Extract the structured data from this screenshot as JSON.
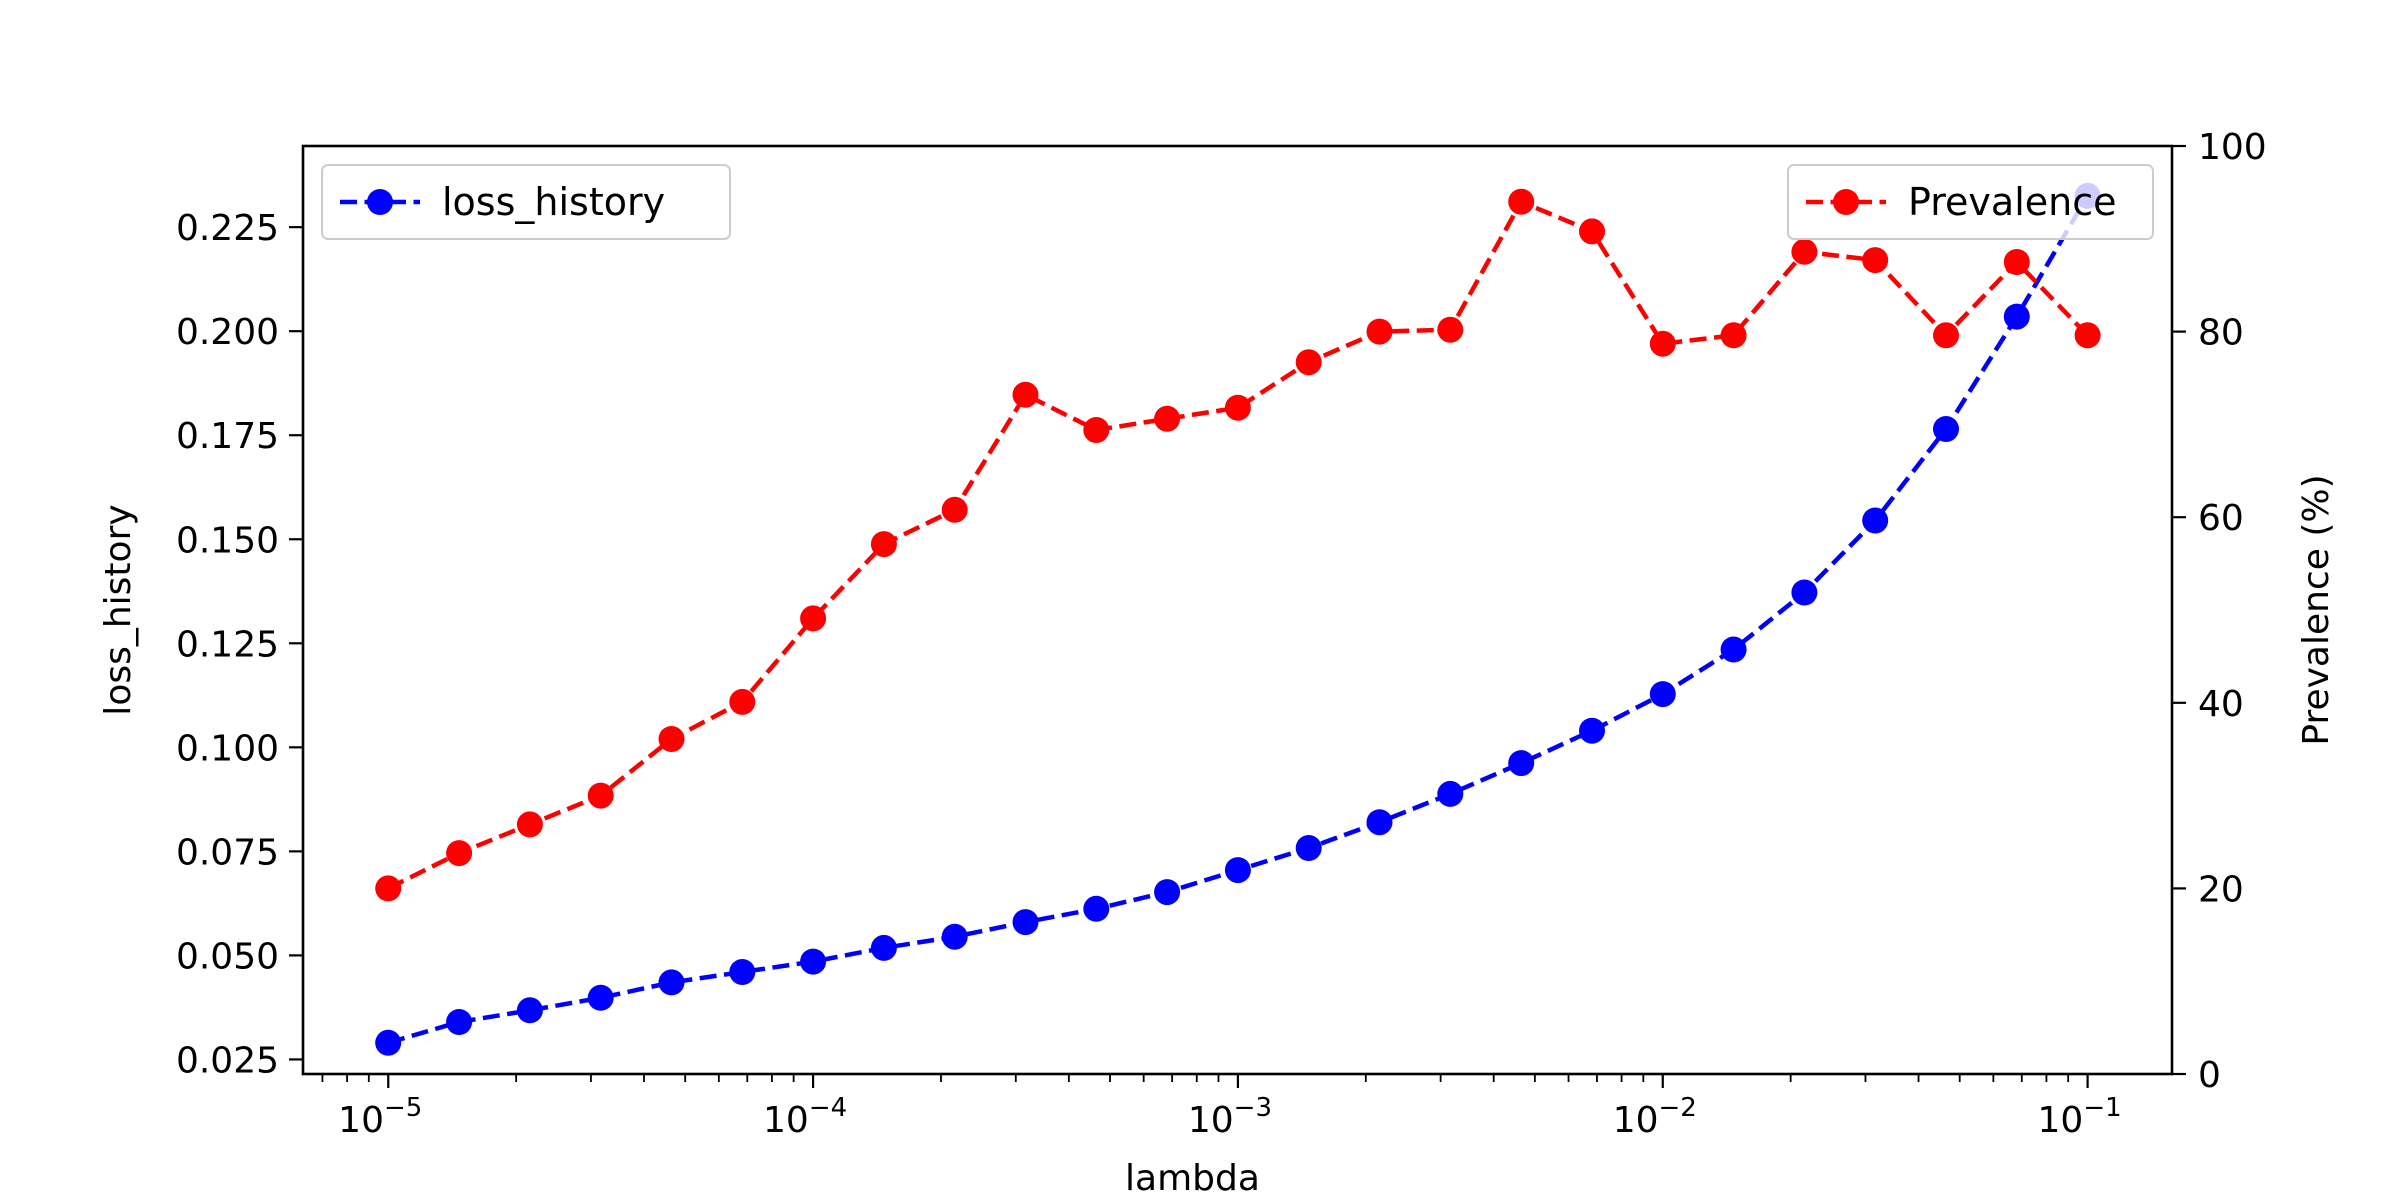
{
  "chart_data": {
    "type": "line",
    "xlabel": "lambda",
    "x_scale": "log",
    "xlim": [
      6.3e-06,
      0.158
    ],
    "x": [
      1e-05,
      1.4678e-05,
      2.1544e-05,
      3.1623e-05,
      4.6416e-05,
      6.8129e-05,
      0.0001,
      0.00014678,
      0.00021544,
      0.00031623,
      0.00046416,
      0.00068129,
      0.001,
      0.0014678,
      0.0021544,
      0.0031623,
      0.0046416,
      0.0068129,
      0.01,
      0.014678,
      0.021544,
      0.031623,
      0.046416,
      0.068129,
      0.1
    ],
    "x_ticks": [
      {
        "value": 1e-05,
        "base": "10",
        "exp": "−5"
      },
      {
        "value": 0.0001,
        "base": "10",
        "exp": "−4"
      },
      {
        "value": 0.001,
        "base": "10",
        "exp": "−3"
      },
      {
        "value": 0.01,
        "base": "10",
        "exp": "−2"
      },
      {
        "value": 0.1,
        "base": "10",
        "exp": "−1"
      }
    ],
    "left_axis": {
      "label": "loss_history",
      "ylim": [
        0.0215,
        0.2445
      ],
      "ticks": [
        0.025,
        0.05,
        0.075,
        0.1,
        0.125,
        0.15,
        0.175,
        0.2,
        0.225
      ],
      "tick_labels": [
        "0.025",
        "0.050",
        "0.075",
        "0.100",
        "0.125",
        "0.150",
        "0.175",
        "0.200",
        "0.225"
      ]
    },
    "right_axis": {
      "label": "Prevalence (%)",
      "ylim": [
        0,
        100
      ],
      "ticks": [
        0,
        20,
        40,
        60,
        80,
        100
      ],
      "tick_labels": [
        "0",
        "20",
        "40",
        "60",
        "80",
        "100"
      ]
    },
    "series": [
      {
        "name": "loss_history",
        "axis": "left",
        "color": "#0000ff",
        "values": [
          0.029,
          0.034,
          0.0368,
          0.0398,
          0.0435,
          0.046,
          0.0485,
          0.0518,
          0.0545,
          0.058,
          0.0612,
          0.0652,
          0.0705,
          0.0758,
          0.082,
          0.0888,
          0.0962,
          0.104,
          0.1128,
          0.1235,
          0.1372,
          0.1545,
          0.1765,
          0.2035,
          0.2325
        ]
      },
      {
        "name": "Prevalence",
        "axis": "right",
        "color": "#ff0000",
        "values": [
          20.0,
          23.8,
          26.9,
          30.0,
          36.1,
          40.1,
          49.1,
          57.1,
          60.8,
          73.2,
          69.4,
          70.6,
          71.8,
          76.7,
          80.0,
          80.2,
          94.0,
          90.8,
          78.7,
          79.6,
          88.6,
          87.7,
          79.6,
          87.5,
          79.6
        ]
      }
    ],
    "legends": [
      {
        "series": "loss_history",
        "placement": "upper-left"
      },
      {
        "series": "Prevalence",
        "placement": "upper-right"
      }
    ],
    "grid": false
  }
}
